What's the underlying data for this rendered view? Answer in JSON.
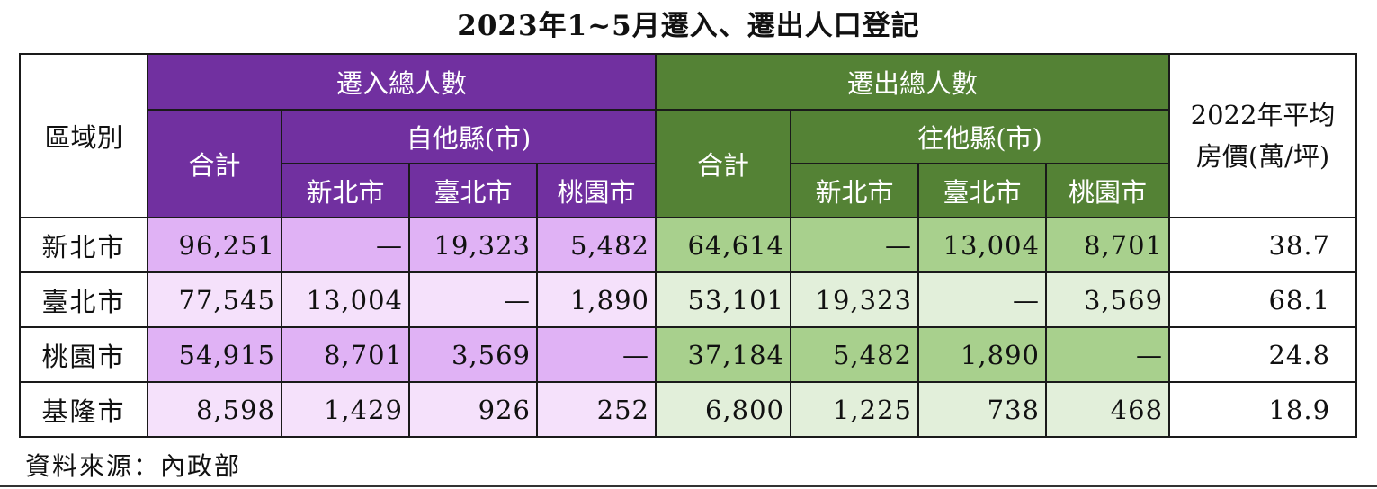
{
  "title": "2023年1~5月遷入、遷出人口登記",
  "headers": {
    "region": "區域別",
    "in_total_group": "遷入總人數",
    "out_total_group": "遷出總人數",
    "price": "2022年平均房價(萬/坪)",
    "price_line1": "2022年平均",
    "price_line2": "房價(萬/坪)",
    "in_sum": "合計",
    "in_from_other": "自他縣(市)",
    "out_sum": "合計",
    "out_to_other": "往他縣(市)",
    "in_sub": [
      "新北市",
      "臺北市",
      "桃園市"
    ],
    "out_sub": [
      "新北市",
      "臺北市",
      "桃園市"
    ]
  },
  "rows": [
    {
      "region": "新北市",
      "in": [
        "96,251",
        "—",
        "19,323",
        "5,482"
      ],
      "out": [
        "64,614",
        "—",
        "13,004",
        "8,701"
      ],
      "price": "38.7"
    },
    {
      "region": "臺北市",
      "in": [
        "77,545",
        "13,004",
        "—",
        "1,890"
      ],
      "out": [
        "53,101",
        "19,323",
        "—",
        "3,569"
      ],
      "price": "68.1"
    },
    {
      "region": "桃園市",
      "in": [
        "54,915",
        "8,701",
        "3,569",
        "—"
      ],
      "out": [
        "37,184",
        "5,482",
        "1,890",
        "—"
      ],
      "price": "24.8"
    },
    {
      "region": "基隆市",
      "in": [
        "8,598",
        "1,429",
        "926",
        "252"
      ],
      "out": [
        "6,800",
        "1,225",
        "738",
        "468"
      ],
      "price": "18.9"
    }
  ],
  "source": "資料來源：內政部",
  "colors": {
    "in_header": "#7130a0",
    "out_header": "#548235",
    "in_row_dark": "#e0b2f5",
    "in_row_light": "#f5e1fb",
    "out_row_dark": "#a8d08d",
    "out_row_light": "#e2efda"
  }
}
